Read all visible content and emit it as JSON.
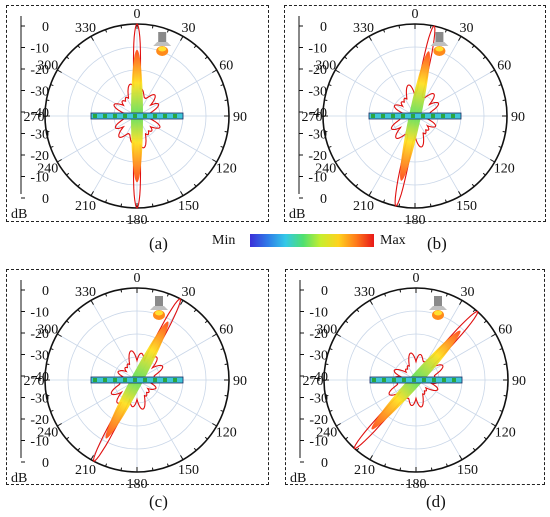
{
  "panels": [
    {
      "caption": "(a)",
      "lamp_angle": 8,
      "beam_angle": 0
    },
    {
      "caption": "(b)",
      "lamp_angle": 6,
      "beam_angle": 12
    },
    {
      "caption": "(c)",
      "lamp_angle": 0,
      "beam_angle": 28
    },
    {
      "caption": "(d)",
      "lamp_angle": 0,
      "beam_angle": 42
    }
  ],
  "radial_scale": {
    "ticks": [
      "0",
      "-10",
      "-20",
      "-30",
      "-40",
      "-30",
      "-20",
      "-10",
      "0"
    ],
    "unit": "dB"
  },
  "angle_labels": [
    "0",
    "30",
    "60",
    "90",
    "120",
    "150",
    "180",
    "210",
    "240",
    "270",
    "300",
    "330"
  ],
  "colorbar": {
    "min_label": "Min",
    "max_label": "Max"
  },
  "colors": {
    "pattern": "#e01010",
    "grid": "#c9d6e8",
    "outline": "#111111"
  }
}
